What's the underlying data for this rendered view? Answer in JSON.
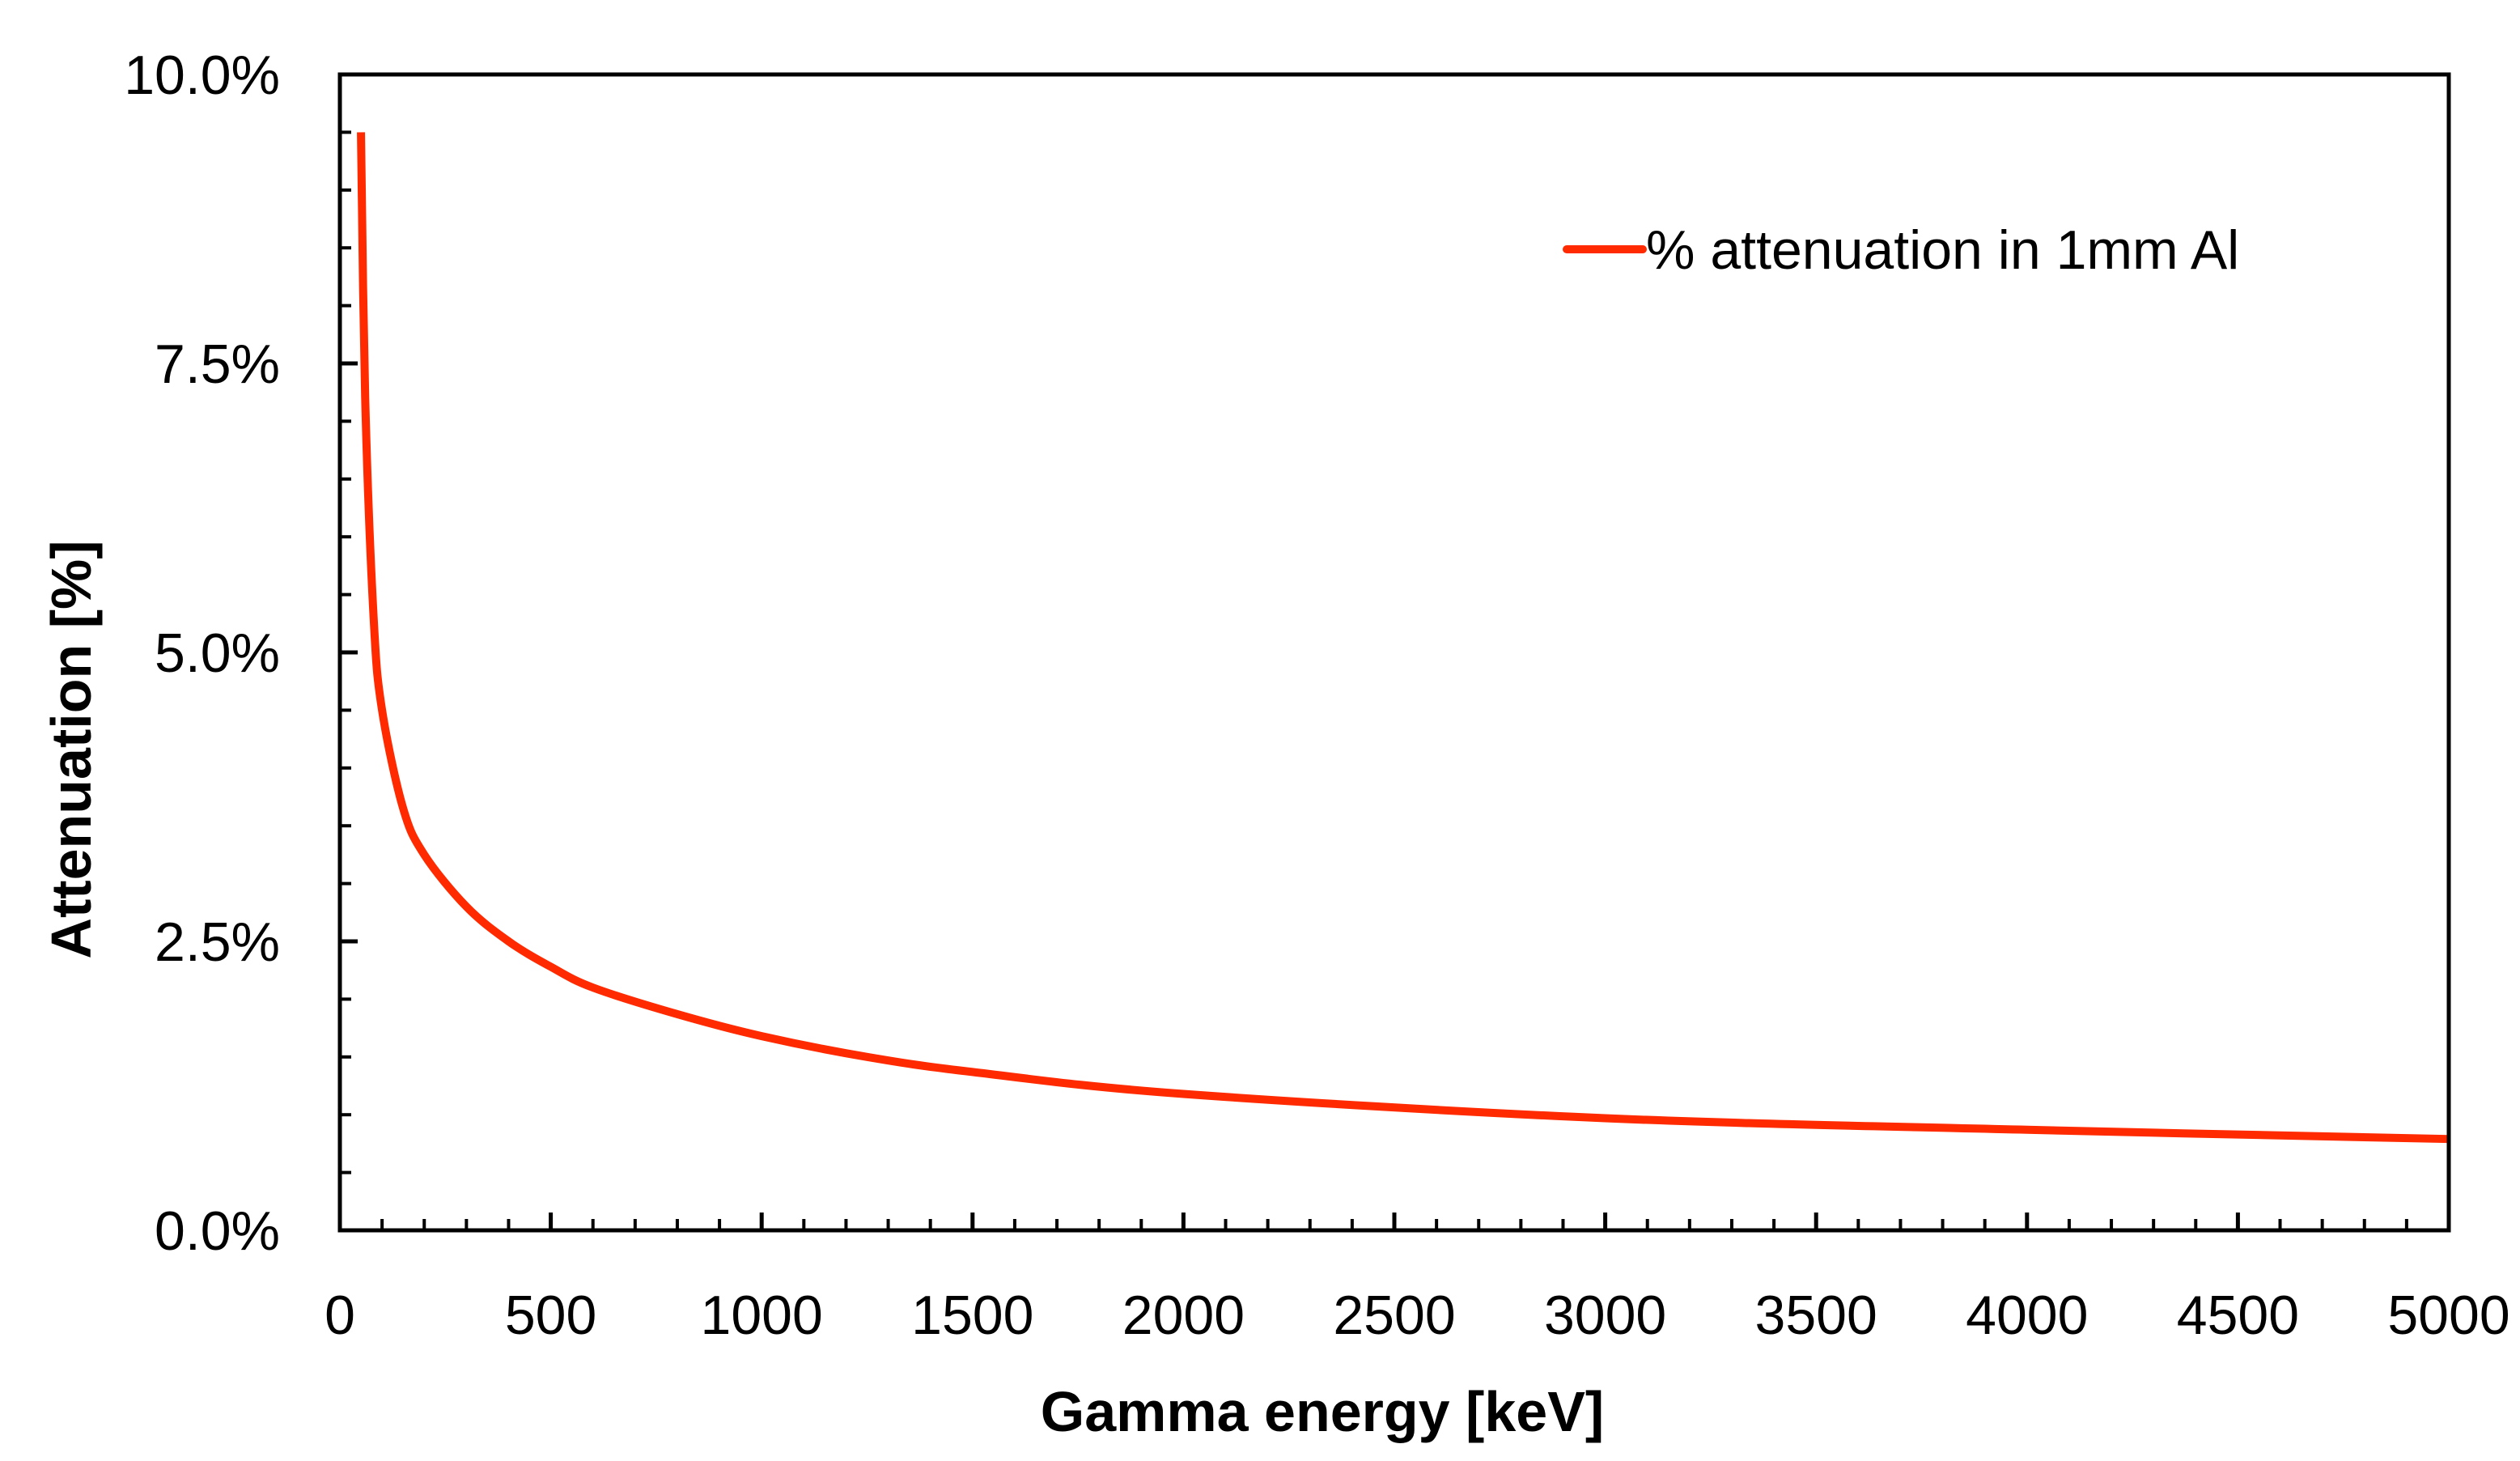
{
  "chart_data": {
    "type": "line",
    "title": "",
    "xlabel": "Gamma energy [keV]",
    "ylabel": "Attenuation [%]",
    "xlim": [
      0,
      5000
    ],
    "ylim": [
      0,
      10
    ],
    "x_ticks": [
      0,
      500,
      1000,
      1500,
      2000,
      2500,
      3000,
      3500,
      4000,
      4500,
      5000
    ],
    "x_tick_labels": [
      "0",
      "500",
      "1000",
      "1500",
      "2000",
      "2500",
      "3000",
      "3500",
      "4000",
      "4500",
      "5000"
    ],
    "x_minor_step": 100,
    "y_ticks": [
      0,
      2.5,
      5,
      7.5,
      10
    ],
    "y_tick_labels": [
      "0.0%",
      "2.5%",
      "5.0%",
      "7.5%",
      "10.0%"
    ],
    "y_minor_step": 0.5,
    "grid": false,
    "legend_position": "top-right",
    "series": [
      {
        "name": "% attenuation in 1mm Al",
        "color": "#ff2a00",
        "x": [
          50,
          60,
          80,
          100,
          150,
          200,
          300,
          400,
          500,
          600,
          800,
          1000,
          1250,
          1500,
          2000,
          3000,
          4000,
          5000
        ],
        "y": [
          9.5,
          7.2,
          5.3,
          4.5,
          3.65,
          3.25,
          2.8,
          2.5,
          2.28,
          2.1,
          1.87,
          1.68,
          1.5,
          1.37,
          1.18,
          0.97,
          0.87,
          0.79
        ]
      }
    ]
  }
}
